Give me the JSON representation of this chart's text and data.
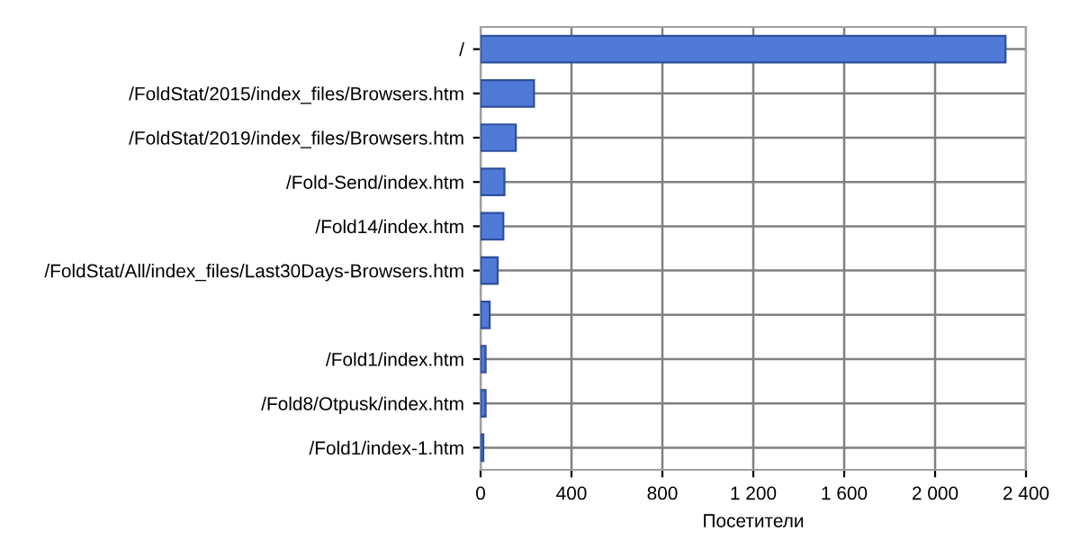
{
  "chart_data": {
    "type": "bar",
    "orientation": "horizontal",
    "xlabel": "Посетители",
    "categories": [
      "/",
      "/FoldStat/2015/index_files/Browsers.htm",
      "/FoldStat/2019/index_files/Browsers.htm",
      "/Fold-Send/index.htm",
      "/Fold14/index.htm",
      "/FoldStat/All/index_files/Last30Days-Browsers.htm",
      null,
      "/Fold1/index.htm",
      "/Fold8/Otpusk/index.htm",
      "/Fold1/index-1.htm"
    ],
    "values": [
      2310,
      235,
      155,
      105,
      100,
      75,
      40,
      22,
      22,
      12
    ],
    "color": "#4f7ad8",
    "xlim": [
      0,
      2400
    ],
    "xticks": [
      0,
      400,
      800,
      {
        "value": 1200,
        "label": "1 200"
      },
      {
        "value": 1600,
        "label": "1 600"
      },
      {
        "value": 2000,
        "label": "2 000"
      },
      {
        "value": 2400,
        "label": "2 400"
      }
    ],
    "grid": true
  }
}
